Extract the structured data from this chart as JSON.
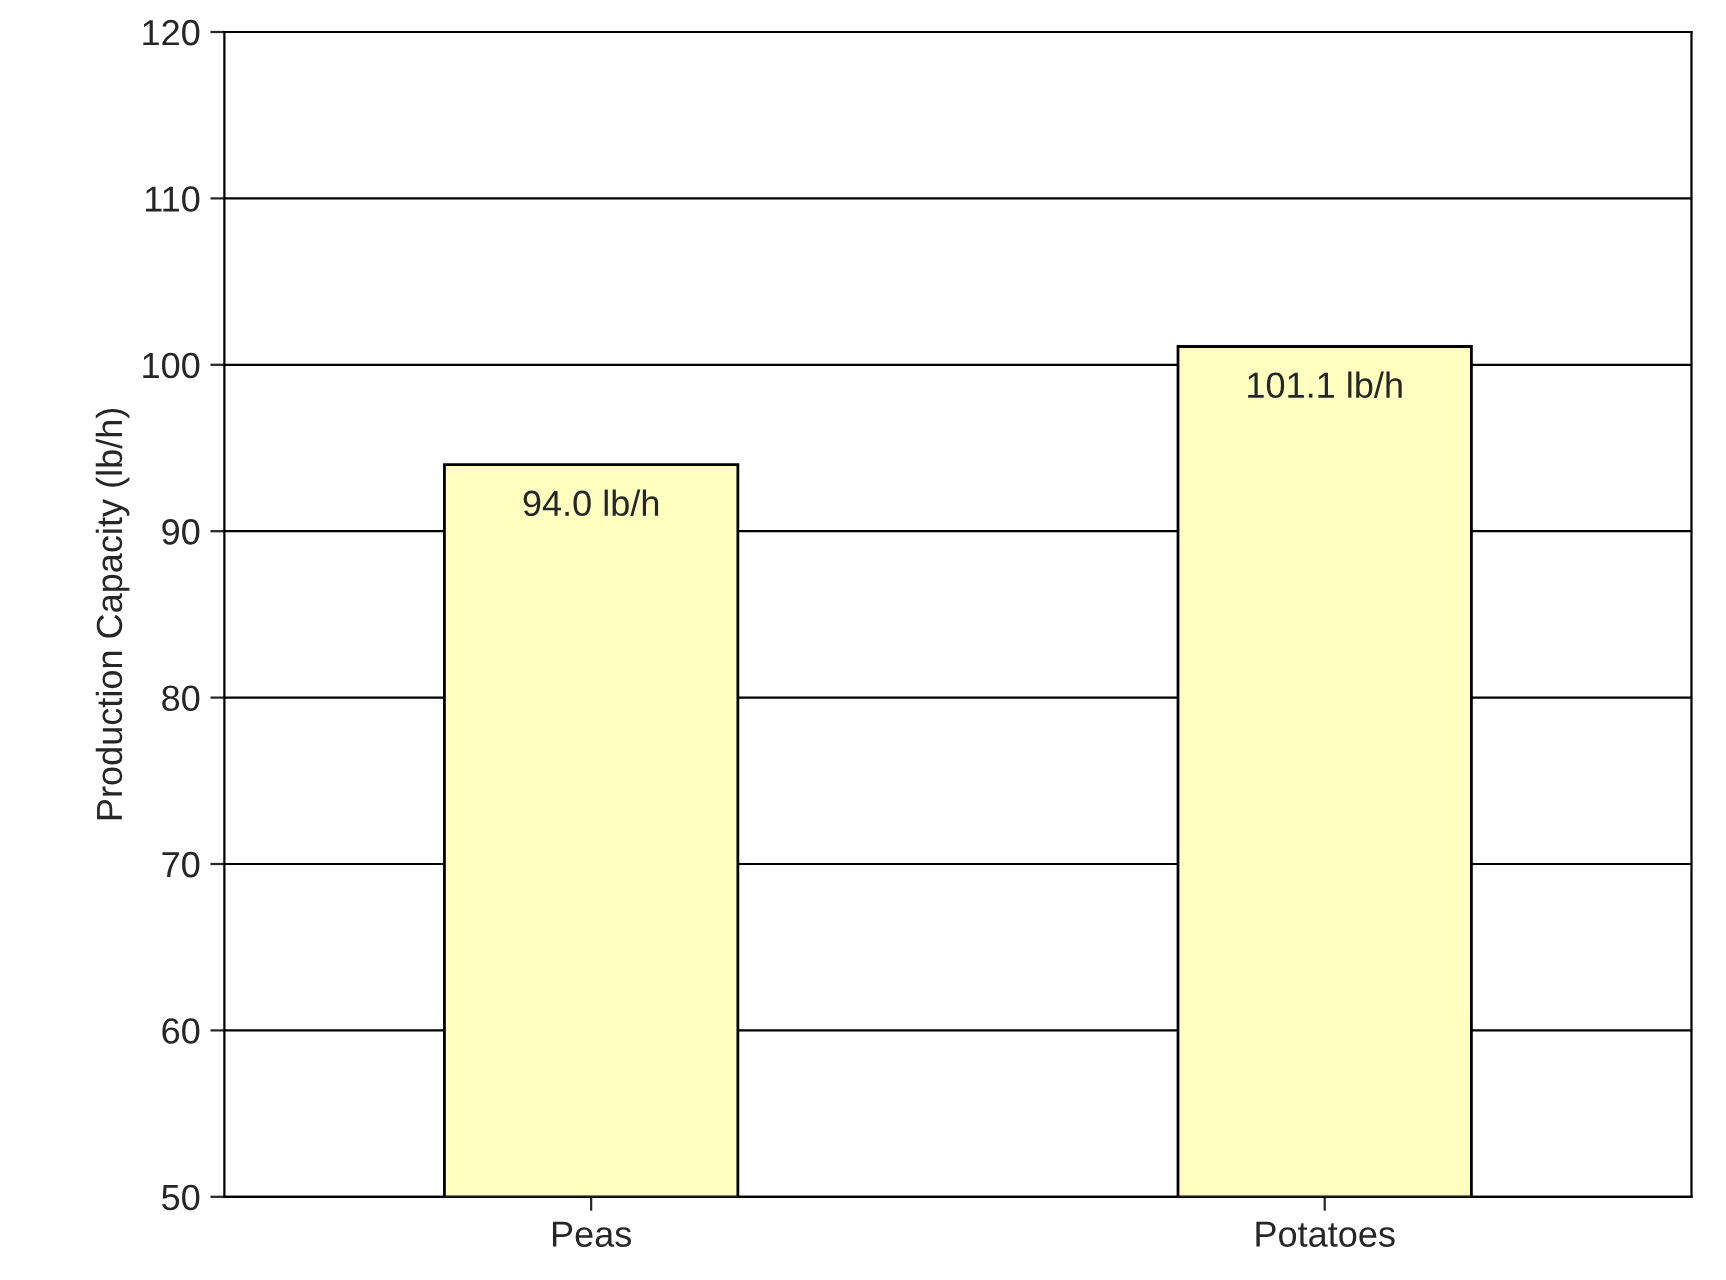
{
  "chart_data": {
    "type": "bar",
    "ylabel": "Production Capacity (lb/h)",
    "categories": [
      "Peas",
      "Potatoes"
    ],
    "values": [
      94.0,
      101.1
    ],
    "value_labels": [
      "94.0 lb/h",
      "101.1 lb/h"
    ],
    "color": "#ffffc0",
    "ylim": [
      50,
      120
    ],
    "yticks": [
      50,
      60,
      70,
      80,
      90,
      100,
      110,
      120
    ],
    "grid": "y"
  }
}
